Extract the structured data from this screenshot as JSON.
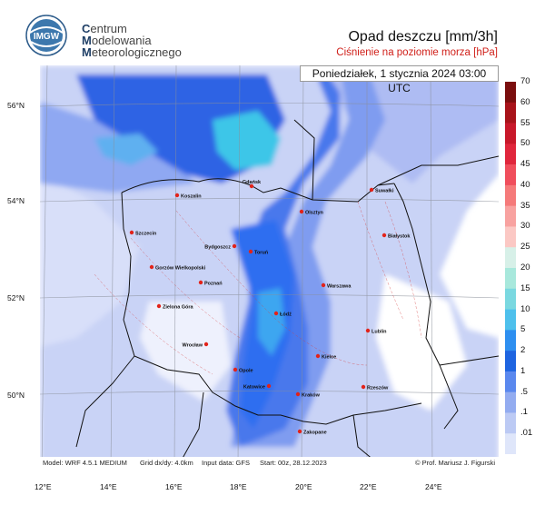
{
  "header": {
    "logo_text": "IMGW",
    "org_lines": [
      {
        "initial": "C",
        "rest": "entrum"
      },
      {
        "initial": "M",
        "rest": "odelowania"
      },
      {
        "initial": "M",
        "rest": "eteorologicznego"
      }
    ],
    "title": "Opad deszczu [mm/3h]",
    "subtitle": "Ciśnienie na poziomie morza [hPa]"
  },
  "datetime": "Poniedziałek, 1 stycznia 2024 03:00 UTC",
  "axes": {
    "lat_labels": [
      "56°N",
      "54°N",
      "52°N",
      "50°N"
    ],
    "lon_labels": [
      "12°E",
      "14°E",
      "16°E",
      "18°E",
      "20°E",
      "22°E",
      "24°E"
    ]
  },
  "footer": {
    "model": "Model: WRF 4.5.1 MEDIUM",
    "grid": "Grid dx/dy: 4.0km",
    "input": "Input data: GFS",
    "start": "Start: 00z, 28.12.2023",
    "credit": "© Prof. Mariusz J. Figurski"
  },
  "colorbar": {
    "labels": [
      "70",
      "60",
      "55",
      "50",
      "45",
      "40",
      "35",
      "30",
      "25",
      "20",
      "15",
      "10",
      "5",
      "2",
      "1",
      ".5",
      ".1",
      ".01"
    ],
    "colors": [
      "#7a0e0e",
      "#a8131a",
      "#c8182a",
      "#e0263c",
      "#f04e5c",
      "#f57a7a",
      "#f8a2a0",
      "#fbc8c4",
      "#d7f0e8",
      "#a8e8dc",
      "#7ad8e0",
      "#4ec0ec",
      "#2e8ff0",
      "#1e64e0",
      "#5a88ee",
      "#93acf0",
      "#bccaf4",
      "#dfe6fa"
    ]
  },
  "cities": [
    {
      "name": "Gdańsk"
    },
    {
      "name": "Koszalin"
    },
    {
      "name": "Suwałki"
    },
    {
      "name": "Olsztyn"
    },
    {
      "name": "Szczecin"
    },
    {
      "name": "Bydgoszcz"
    },
    {
      "name": "Toruń"
    },
    {
      "name": "Białystok"
    },
    {
      "name": "Gorzów Wielkopolski"
    },
    {
      "name": "Poznań"
    },
    {
      "name": "Warszawa"
    },
    {
      "name": "Zielona Góra"
    },
    {
      "name": "Łódź"
    },
    {
      "name": "Lublin"
    },
    {
      "name": "Wrocław"
    },
    {
      "name": "Kielce"
    },
    {
      "name": "Opole"
    },
    {
      "name": "Katowice"
    },
    {
      "name": "Kraków"
    },
    {
      "name": "Rzeszów"
    },
    {
      "name": "Zakopane"
    }
  ]
}
